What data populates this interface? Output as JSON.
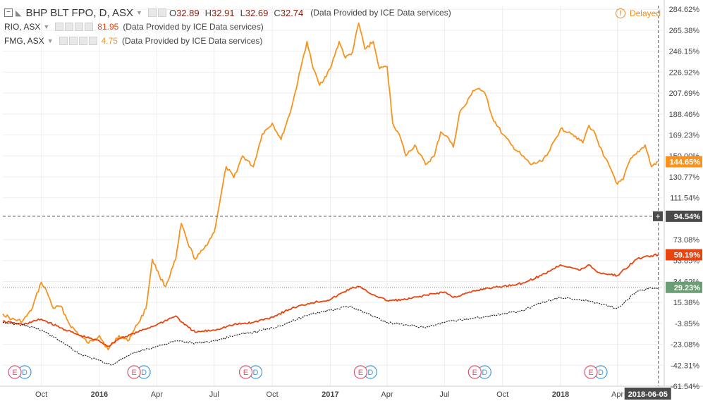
{
  "header": {
    "main": {
      "symbol": "BHP BLT FPO, D, ASX",
      "o_label": "O",
      "o": "32.89",
      "h_label": "H",
      "h": "32.91",
      "l_label": "L",
      "l": "32.69",
      "c_label": "C",
      "c": "32.74",
      "provider": "(Data Provided by ICE Data services)"
    },
    "compare": [
      {
        "symbol": "RIO, ASX",
        "last": "81.95",
        "color": "#e8440f",
        "provider": "(Data Provided by ICE Data services)"
      },
      {
        "symbol": "FMG, ASX",
        "last": "4.75",
        "color": "#f7931e",
        "provider": "(Data Provided by ICE Data services)"
      }
    ],
    "delayed": "Delayed"
  },
  "colors": {
    "fmg": "#f7931e",
    "rio": "#e8440f",
    "bhp": "#222222",
    "axis_text": "#444444",
    "grid": "#eeeeee",
    "crosshair_badge": "#4a4a4a",
    "bhp_badge": "#6b9e74"
  },
  "badges": {
    "fmg": "144.65%",
    "rio": "59.19%",
    "bhp": "29.23%",
    "crosshair": "94.54%",
    "date": "2018-06-05",
    "plus": "+"
  },
  "event_marker_label": "E",
  "dividend_marker_label": "D",
  "chart_data": {
    "type": "line",
    "y_unit": "%",
    "yaxis_ticks": [
      "284.62%",
      "265.38%",
      "246.15%",
      "226.92%",
      "207.69%",
      "188.46%",
      "169.23%",
      "150.00%",
      "130.77%",
      "111.54%",
      "73.08%",
      "53.85%",
      "34.62%",
      "15.38%",
      "-3.85%",
      "-23.08%",
      "-42.31%",
      "-61.54%"
    ],
    "yaxis_tick_values": [
      284.62,
      265.38,
      246.15,
      226.92,
      207.69,
      188.46,
      169.23,
      150.0,
      130.77,
      111.54,
      73.08,
      53.85,
      34.62,
      15.38,
      -3.85,
      -23.08,
      -42.31,
      -61.54
    ],
    "ylim": [
      -61.54,
      288
    ],
    "xlim": [
      "2015-08-01",
      "2018-06-12"
    ],
    "xaxis_ticks": [
      {
        "label": "Oct",
        "date": "2015-10-01"
      },
      {
        "label": "2016",
        "date": "2016-01-01",
        "bold": true
      },
      {
        "label": "Apr",
        "date": "2016-04-01"
      },
      {
        "label": "Jul",
        "date": "2016-07-01"
      },
      {
        "label": "Oct",
        "date": "2016-10-01"
      },
      {
        "label": "2017",
        "date": "2017-01-01",
        "bold": true
      },
      {
        "label": "Apr",
        "date": "2017-04-01"
      },
      {
        "label": "Jul",
        "date": "2017-07-01"
      },
      {
        "label": "Oct",
        "date": "2017-10-01"
      },
      {
        "label": "2018",
        "date": "2018-01-01",
        "bold": true
      },
      {
        "label": "Apr",
        "date": "2018-04-01"
      }
    ],
    "crosshair": {
      "date": "2018-06-05",
      "value": 94.54
    },
    "series": [
      {
        "name": "FMG, ASX",
        "key": "fmg",
        "style": "solid",
        "points": [
          [
            "2015-08-01",
            5
          ],
          [
            "2015-08-15",
            0
          ],
          [
            "2015-09-01",
            -2
          ],
          [
            "2015-09-15",
            8
          ],
          [
            "2015-10-01",
            34
          ],
          [
            "2015-10-10",
            25
          ],
          [
            "2015-10-20",
            10
          ],
          [
            "2015-11-01",
            12
          ],
          [
            "2015-11-15",
            -5
          ],
          [
            "2015-12-01",
            -15
          ],
          [
            "2015-12-15",
            -22
          ],
          [
            "2016-01-01",
            -15
          ],
          [
            "2016-01-15",
            -28
          ],
          [
            "2016-02-01",
            -15
          ],
          [
            "2016-02-15",
            -20
          ],
          [
            "2016-03-01",
            -5
          ],
          [
            "2016-03-15",
            10
          ],
          [
            "2016-03-25",
            55
          ],
          [
            "2016-04-05",
            40
          ],
          [
            "2016-04-15",
            30
          ],
          [
            "2016-05-01",
            55
          ],
          [
            "2016-05-10",
            88
          ],
          [
            "2016-05-20",
            70
          ],
          [
            "2016-06-01",
            55
          ],
          [
            "2016-06-15",
            65
          ],
          [
            "2016-07-01",
            80
          ],
          [
            "2016-07-10",
            108
          ],
          [
            "2016-07-20",
            140
          ],
          [
            "2016-08-01",
            130
          ],
          [
            "2016-08-15",
            150
          ],
          [
            "2016-09-01",
            140
          ],
          [
            "2016-09-15",
            170
          ],
          [
            "2016-10-01",
            180
          ],
          [
            "2016-10-15",
            165
          ],
          [
            "2016-11-01",
            195
          ],
          [
            "2016-11-15",
            230
          ],
          [
            "2016-11-25",
            255
          ],
          [
            "2016-12-05",
            230
          ],
          [
            "2016-12-15",
            215
          ],
          [
            "2017-01-01",
            230
          ],
          [
            "2017-01-15",
            255
          ],
          [
            "2017-01-25",
            240
          ],
          [
            "2017-02-05",
            245
          ],
          [
            "2017-02-15",
            272
          ],
          [
            "2017-02-25",
            248
          ],
          [
            "2017-03-10",
            255
          ],
          [
            "2017-03-20",
            230
          ],
          [
            "2017-04-01",
            232
          ],
          [
            "2017-04-10",
            180
          ],
          [
            "2017-04-20",
            170
          ],
          [
            "2017-05-01",
            150
          ],
          [
            "2017-05-15",
            160
          ],
          [
            "2017-06-01",
            142
          ],
          [
            "2017-06-15",
            150
          ],
          [
            "2017-06-25",
            172
          ],
          [
            "2017-07-05",
            168
          ],
          [
            "2017-07-15",
            158
          ],
          [
            "2017-07-25",
            190
          ],
          [
            "2017-08-05",
            198
          ],
          [
            "2017-08-15",
            210
          ],
          [
            "2017-08-25",
            212
          ],
          [
            "2017-09-05",
            205
          ],
          [
            "2017-09-15",
            185
          ],
          [
            "2017-10-01",
            170
          ],
          [
            "2017-10-15",
            160
          ],
          [
            "2017-11-01",
            150
          ],
          [
            "2017-11-15",
            142
          ],
          [
            "2017-12-01",
            145
          ],
          [
            "2017-12-15",
            155
          ],
          [
            "2018-01-01",
            175
          ],
          [
            "2018-01-15",
            172
          ],
          [
            "2018-01-25",
            168
          ],
          [
            "2018-02-05",
            162
          ],
          [
            "2018-02-15",
            178
          ],
          [
            "2018-02-25",
            170
          ],
          [
            "2018-03-10",
            150
          ],
          [
            "2018-03-20",
            140
          ],
          [
            "2018-04-01",
            124
          ],
          [
            "2018-04-10",
            128
          ],
          [
            "2018-04-20",
            145
          ],
          [
            "2018-05-01",
            152
          ],
          [
            "2018-05-15",
            160
          ],
          [
            "2018-05-25",
            140
          ],
          [
            "2018-06-05",
            144.65
          ]
        ]
      },
      {
        "name": "RIO, ASX",
        "key": "rio",
        "style": "solid",
        "points": [
          [
            "2015-08-01",
            -2
          ],
          [
            "2015-09-01",
            -5
          ],
          [
            "2015-10-01",
            0
          ],
          [
            "2015-11-01",
            -8
          ],
          [
            "2015-12-01",
            -15
          ],
          [
            "2016-01-01",
            -20
          ],
          [
            "2016-01-15",
            -25
          ],
          [
            "2016-02-01",
            -18
          ],
          [
            "2016-03-01",
            -12
          ],
          [
            "2016-04-01",
            -5
          ],
          [
            "2016-05-01",
            3
          ],
          [
            "2016-05-15",
            -5
          ],
          [
            "2016-06-01",
            -12
          ],
          [
            "2016-07-01",
            -10
          ],
          [
            "2016-08-01",
            -5
          ],
          [
            "2016-09-01",
            -3
          ],
          [
            "2016-10-01",
            2
          ],
          [
            "2016-11-01",
            10
          ],
          [
            "2016-12-01",
            15
          ],
          [
            "2017-01-01",
            18
          ],
          [
            "2017-02-01",
            28
          ],
          [
            "2017-02-15",
            30
          ],
          [
            "2017-03-01",
            25
          ],
          [
            "2017-04-01",
            17
          ],
          [
            "2017-05-01",
            18
          ],
          [
            "2017-06-01",
            22
          ],
          [
            "2017-07-01",
            25
          ],
          [
            "2017-07-15",
            20
          ],
          [
            "2017-08-01",
            23
          ],
          [
            "2017-09-01",
            28
          ],
          [
            "2017-10-01",
            30
          ],
          [
            "2017-11-01",
            33
          ],
          [
            "2017-12-01",
            40
          ],
          [
            "2018-01-01",
            50
          ],
          [
            "2018-01-15",
            48
          ],
          [
            "2018-02-01",
            45
          ],
          [
            "2018-02-15",
            50
          ],
          [
            "2018-03-01",
            43
          ],
          [
            "2018-04-01",
            40
          ],
          [
            "2018-05-01",
            55
          ],
          [
            "2018-05-20",
            58
          ],
          [
            "2018-06-05",
            59.19
          ]
        ]
      },
      {
        "name": "BHP BLT FPO, D, ASX",
        "key": "bhp",
        "style": "dotted",
        "points": [
          [
            "2015-08-01",
            -3
          ],
          [
            "2015-09-01",
            -5
          ],
          [
            "2015-10-01",
            -10
          ],
          [
            "2015-11-01",
            -20
          ],
          [
            "2015-12-01",
            -32
          ],
          [
            "2016-01-01",
            -38
          ],
          [
            "2016-01-20",
            -42
          ],
          [
            "2016-02-01",
            -38
          ],
          [
            "2016-03-01",
            -30
          ],
          [
            "2016-04-01",
            -25
          ],
          [
            "2016-05-01",
            -20
          ],
          [
            "2016-06-01",
            -22
          ],
          [
            "2016-07-01",
            -20
          ],
          [
            "2016-08-01",
            -15
          ],
          [
            "2016-09-01",
            -12
          ],
          [
            "2016-10-01",
            -8
          ],
          [
            "2016-11-01",
            -2
          ],
          [
            "2016-12-01",
            5
          ],
          [
            "2017-01-01",
            8
          ],
          [
            "2017-02-01",
            12
          ],
          [
            "2017-03-01",
            5
          ],
          [
            "2017-04-01",
            -3
          ],
          [
            "2017-05-01",
            -5
          ],
          [
            "2017-06-01",
            -8
          ],
          [
            "2017-07-01",
            -3
          ],
          [
            "2017-08-01",
            0
          ],
          [
            "2017-09-01",
            2
          ],
          [
            "2017-10-01",
            5
          ],
          [
            "2017-11-01",
            8
          ],
          [
            "2017-12-01",
            15
          ],
          [
            "2018-01-01",
            20
          ],
          [
            "2018-02-01",
            18
          ],
          [
            "2018-03-01",
            15
          ],
          [
            "2018-04-01",
            10
          ],
          [
            "2018-05-01",
            25
          ],
          [
            "2018-05-20",
            28
          ],
          [
            "2018-06-05",
            29.23
          ]
        ]
      }
    ],
    "event_markers": [
      {
        "date": "2015-08-20",
        "types": [
          "E",
          "D"
        ]
      },
      {
        "date": "2016-02-25",
        "types": [
          "E",
          "D"
        ]
      },
      {
        "date": "2016-08-20",
        "types": [
          "E",
          "D"
        ]
      },
      {
        "date": "2017-02-18",
        "types": [
          "E",
          "D"
        ]
      },
      {
        "date": "2017-08-18",
        "types": [
          "E",
          "D"
        ]
      },
      {
        "date": "2018-02-18",
        "types": [
          "E",
          "D"
        ]
      }
    ]
  }
}
